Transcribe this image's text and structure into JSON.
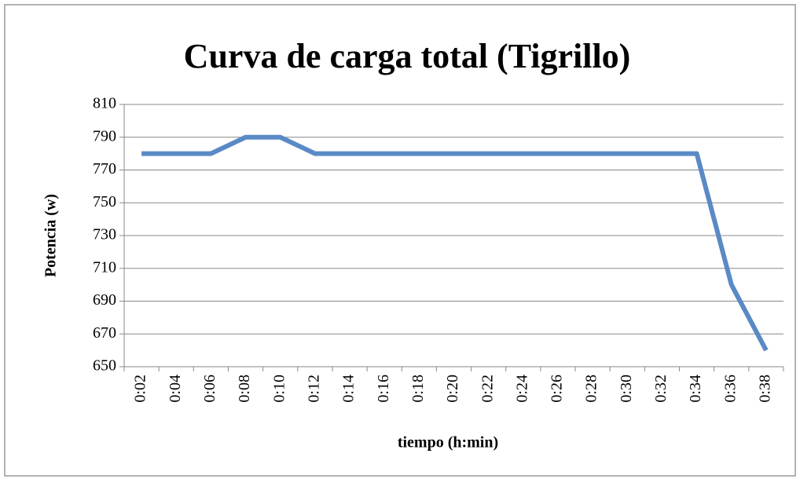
{
  "chart_data": {
    "type": "line",
    "title": "Curva de carga total (Tigrillo)",
    "x_label": "tiempo (h:min)",
    "y_label": "Potencia (w)",
    "categories": [
      "0:02",
      "0:04",
      "0:06",
      "0:08",
      "0:10",
      "0:12",
      "0:14",
      "0:16",
      "0:18",
      "0:20",
      "0:22",
      "0:24",
      "0:26",
      "0:28",
      "0:30",
      "0:32",
      "0:34",
      "0:36",
      "0:38"
    ],
    "series": [
      {
        "name": "Potencia",
        "color": "#5a8ac6",
        "values": [
          780,
          780,
          780,
          790,
          790,
          780,
          780,
          780,
          780,
          780,
          780,
          780,
          780,
          780,
          780,
          780,
          780,
          700,
          660
        ]
      }
    ],
    "ylim": [
      650,
      810
    ],
    "yticks": [
      650,
      670,
      690,
      710,
      730,
      750,
      770,
      790,
      810
    ],
    "grid": true
  }
}
